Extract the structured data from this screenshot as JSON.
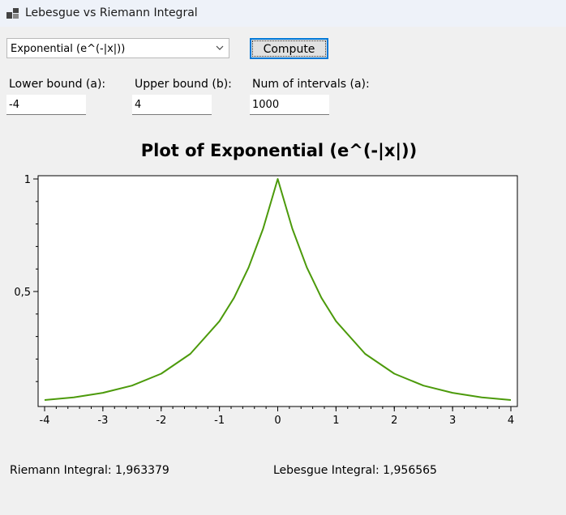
{
  "window": {
    "title": "Lebesgue vs Riemann Integral",
    "icon": "app-window-icon"
  },
  "controls": {
    "function_select": {
      "selected": "Exponential (e^(-|x|))"
    },
    "compute_label": "Compute",
    "lower": {
      "label": "Lower bound (a):",
      "value": "-4"
    },
    "upper": {
      "label": "Upper bound (b):",
      "value": "4"
    },
    "intervals": {
      "label": "Num of intervals (a):",
      "value": "1000"
    }
  },
  "chart_data": {
    "type": "line",
    "title": "Plot of Exponential (e^(-|x|))",
    "xlabel": "",
    "ylabel": "",
    "xlim": [
      -4,
      4
    ],
    "ylim": [
      0,
      1
    ],
    "x_ticks": [
      "-4",
      "-3",
      "-2",
      "-1",
      "0",
      "1",
      "2",
      "3",
      "4"
    ],
    "y_ticks": [
      "0,5",
      "1"
    ],
    "grid": false,
    "line_color": "#4c9a0b",
    "series": [
      {
        "x": [
          -4,
          -3.5,
          -3,
          -2.5,
          -2,
          -1.5,
          -1,
          -0.75,
          -0.5,
          -0.25,
          0,
          0.25,
          0.5,
          0.75,
          1,
          1.5,
          2,
          2.5,
          3,
          3.5,
          4
        ],
        "y": [
          0.018,
          0.03,
          0.05,
          0.082,
          0.135,
          0.223,
          0.368,
          0.472,
          0.607,
          0.779,
          1.0,
          0.779,
          0.607,
          0.472,
          0.368,
          0.223,
          0.135,
          0.082,
          0.05,
          0.03,
          0.018
        ]
      }
    ]
  },
  "results": {
    "riemann": "Riemann Integral: 1,963379",
    "lebesgue": "Lebesgue Integral: 1,956565"
  }
}
